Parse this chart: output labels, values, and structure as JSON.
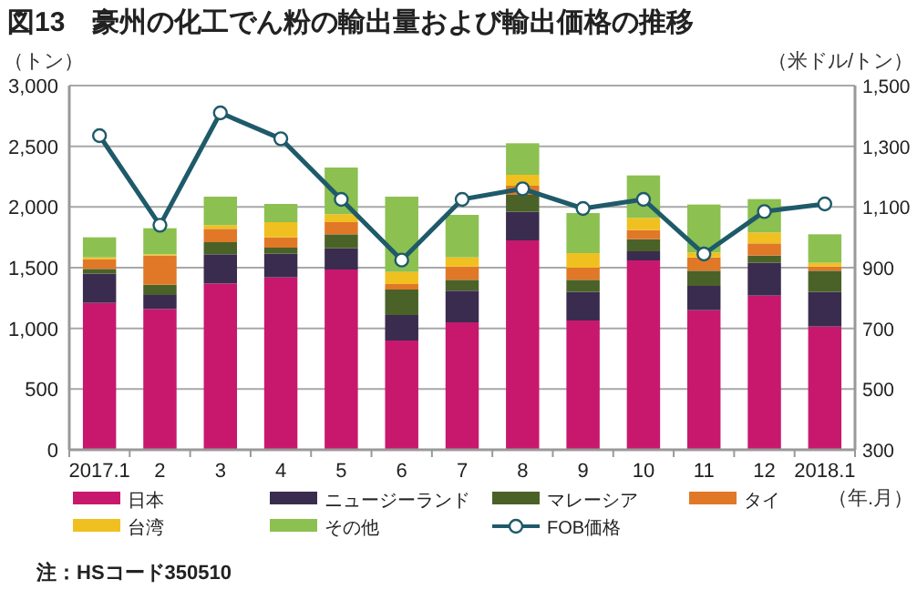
{
  "chart_data": {
    "type": "bar",
    "stacked": true,
    "title": "図13　豪州の化工でん粉の輸出量および輸出価格の推移",
    "ylabel": "（トン）",
    "y2label": "（米ドル/トン）",
    "xlabel": "（年.月）",
    "categories": [
      "2017.1",
      "2",
      "3",
      "4",
      "5",
      "6",
      "7",
      "8",
      "9",
      "10",
      "11",
      "12",
      "2018.1"
    ],
    "series": [
      {
        "name": "日本",
        "color": "#c8186e",
        "values": [
          1210,
          1160,
          1370,
          1420,
          1485,
          900,
          1050,
          1725,
          1065,
          1560,
          1150,
          1270,
          1015
        ]
      },
      {
        "name": "ニュージーランド",
        "color": "#3a2c4e",
        "values": [
          240,
          115,
          240,
          195,
          175,
          210,
          260,
          235,
          235,
          75,
          200,
          270,
          285
        ]
      },
      {
        "name": "マレーシア",
        "color": "#4a6228",
        "values": [
          40,
          85,
          100,
          50,
          115,
          210,
          90,
          140,
          100,
          100,
          125,
          60,
          175
        ]
      },
      {
        "name": "タイ",
        "color": "#e07828",
        "values": [
          80,
          240,
          110,
          85,
          100,
          45,
          110,
          75,
          100,
          75,
          110,
          100,
          35
        ]
      },
      {
        "name": "台湾",
        "color": "#f0c020",
        "values": [
          15,
          10,
          30,
          125,
          65,
          100,
          75,
          90,
          120,
          100,
          40,
          90,
          30
        ]
      },
      {
        "name": "その他",
        "color": "#8cc050",
        "values": [
          165,
          215,
          235,
          150,
          385,
          620,
          350,
          260,
          330,
          350,
          395,
          275,
          235
        ]
      },
      {
        "name": "FOB価格",
        "color": "#1e5a6a",
        "type": "line",
        "axis": "y2",
        "marker": "circle",
        "values": [
          1335,
          1040,
          1410,
          1325,
          1125,
          925,
          1125,
          1160,
          1095,
          1125,
          945,
          1085,
          1110
        ]
      }
    ],
    "ylim": [
      0,
      3000
    ],
    "yticks": [
      0,
      500,
      {
        "value": 1000,
        "label": "1,000"
      },
      {
        "value": 1500,
        "label": "1,500"
      },
      {
        "value": 2000,
        "label": "2,000"
      },
      {
        "value": 2500,
        "label": "2,500"
      },
      {
        "value": 3000,
        "label": "3,000"
      }
    ],
    "y2lim": [
      300,
      1500
    ],
    "y2ticks": [
      300,
      500,
      700,
      900,
      {
        "value": 1100,
        "label": "1,100"
      },
      {
        "value": 1300,
        "label": "1,300"
      },
      {
        "value": 1500,
        "label": "1,500"
      }
    ],
    "grid": "y",
    "legend": "bottom",
    "annotations": [
      "注：HSコード350510"
    ]
  }
}
